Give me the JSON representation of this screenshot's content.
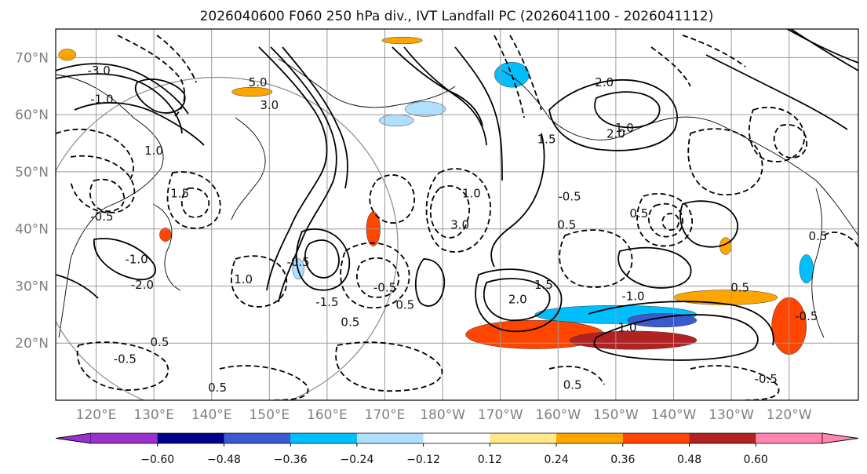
{
  "chart_data": {
    "type": "map",
    "title": "2026040600 F060 250 hPa div., IVT Landfall PC (2026041100 - 2026041112)",
    "lat_labels": [
      "70°N",
      "60°N",
      "50°N",
      "40°N",
      "30°N",
      "20°N"
    ],
    "lat_values": [
      70,
      60,
      50,
      40,
      30,
      20
    ],
    "lon_labels": [
      "120°E",
      "130°E",
      "140°E",
      "150°E",
      "160°E",
      "170°E",
      "180°W",
      "170°W",
      "160°W",
      "150°W",
      "140°W",
      "130°W",
      "120°W"
    ],
    "lon_values": [
      120,
      130,
      140,
      150,
      160,
      170,
      180,
      190,
      200,
      210,
      220,
      230,
      240
    ],
    "extent": {
      "lon_min": 113,
      "lon_max": 252,
      "lat_min": 10,
      "lat_max": 75
    },
    "colorbar": {
      "tick_labels": [
        "−0.60",
        "−0.48",
        "−0.36",
        "−0.24",
        "−0.12",
        "0.12",
        "0.24",
        "0.36",
        "0.48",
        "0.60"
      ],
      "tick_values": [
        -0.6,
        -0.48,
        -0.36,
        -0.24,
        -0.12,
        0.12,
        0.24,
        0.36,
        0.48,
        0.6
      ],
      "colors": [
        "#9932cc",
        "#00008b",
        "#3a5bd0",
        "#00bfff",
        "#b0e0ff",
        "#ffffff",
        "#ffe88a",
        "#ffa500",
        "#ff4500",
        "#b22222",
        "#ff85b0"
      ],
      "extend": "both"
    },
    "contour_labels": [
      "3.0",
      "1.5",
      "1.0",
      "-3.0",
      "5.0",
      "2.0",
      "-1.0",
      "0.5",
      "-0.5",
      "-1.5",
      "-2.0"
    ],
    "fill_regions": [
      {
        "lon": 196,
        "lat": 21.5,
        "rx": 12,
        "ry": 2.5,
        "value": 0.36
      },
      {
        "lon": 213,
        "lat": 20.5,
        "rx": 11,
        "ry": 1.6,
        "value": 0.48
      },
      {
        "lon": 210,
        "lat": 25,
        "rx": 14,
        "ry": 1.6,
        "value": -0.36
      },
      {
        "lon": 218,
        "lat": 24,
        "rx": 6,
        "ry": 1.2,
        "value": -0.48
      },
      {
        "lon": 229,
        "lat": 28,
        "rx": 9,
        "ry": 1.3,
        "value": 0.24
      },
      {
        "lon": 240,
        "lat": 23,
        "rx": 3,
        "ry": 5,
        "value": 0.36
      },
      {
        "lon": 192,
        "lat": 67,
        "rx": 3,
        "ry": 2.2,
        "value": -0.36
      },
      {
        "lon": 177,
        "lat": 61,
        "rx": 3.5,
        "ry": 1.3,
        "value": -0.24
      },
      {
        "lon": 172,
        "lat": 59,
        "rx": 3,
        "ry": 1,
        "value": -0.24
      },
      {
        "lon": 168,
        "lat": 40,
        "rx": 1.2,
        "ry": 3,
        "value": 0.36
      },
      {
        "lon": 155,
        "lat": 33,
        "rx": 1,
        "ry": 1.8,
        "value": -0.24
      },
      {
        "lon": 132,
        "lat": 39,
        "rx": 1,
        "ry": 1.2,
        "value": 0.36
      },
      {
        "lon": 229,
        "lat": 37,
        "rx": 1,
        "ry": 1.5,
        "value": 0.24
      },
      {
        "lon": 243,
        "lat": 33,
        "rx": 1.2,
        "ry": 2.5,
        "value": -0.36
      },
      {
        "lon": 147,
        "lat": 64,
        "rx": 3.5,
        "ry": 0.8,
        "value": 0.24
      },
      {
        "lon": 173,
        "lat": 73,
        "rx": 3.5,
        "ry": 0.6,
        "value": 0.24
      },
      {
        "lon": 115,
        "lat": 70.5,
        "rx": 1.5,
        "ry": 1,
        "value": 0.24
      }
    ]
  }
}
